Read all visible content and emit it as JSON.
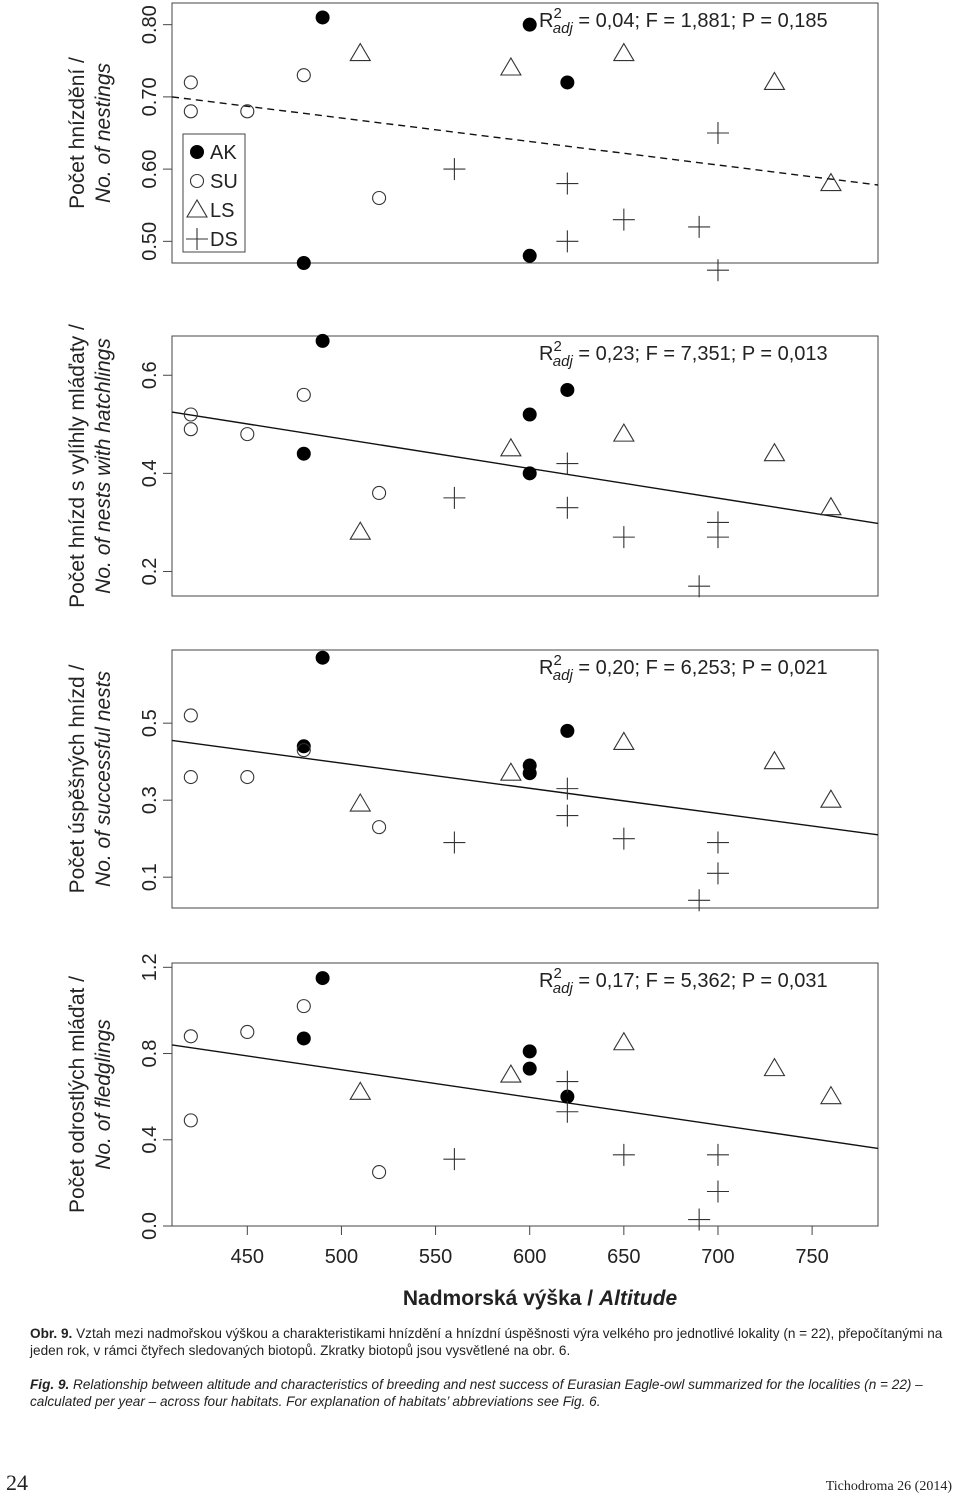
{
  "figure": {
    "x_axis": {
      "title_cz": "Nadmorská výška / ",
      "title_en": "Altitude",
      "ticks": [
        "450",
        "500",
        "550",
        "600",
        "650",
        "700",
        "750"
      ]
    },
    "legend": [
      "AK",
      "SU",
      "LS",
      "DS"
    ]
  },
  "chart_data": [
    {
      "type": "scatter",
      "ylabel_cz": "Počet hnízdění /",
      "ylabel_en": "No. of nestings",
      "xlim": [
        410,
        785
      ],
      "ylim": [
        0.47,
        0.83
      ],
      "yticks": [
        "0.50",
        "0.60",
        "0.70",
        "0.80"
      ],
      "stat_pre": "R",
      "stat_sup": "2",
      "stat_sub": "adj",
      "stat_text": " = 0,04; F = 1,881; P = 0,185",
      "fit_line": {
        "style": "dashed",
        "x": [
          410,
          785
        ],
        "y": [
          0.7,
          0.578
        ]
      },
      "series": [
        {
          "name": "AK",
          "marker": "filled-circle",
          "points": [
            [
              480,
              0.47
            ],
            [
              490,
              0.81
            ],
            [
              600,
              0.8
            ],
            [
              600,
              0.48
            ],
            [
              620,
              0.72
            ]
          ]
        },
        {
          "name": "SU",
          "marker": "open-circle",
          "points": [
            [
              420,
              0.72
            ],
            [
              420,
              0.68
            ],
            [
              450,
              0.68
            ],
            [
              480,
              0.73
            ],
            [
              520,
              0.56
            ]
          ]
        },
        {
          "name": "LS",
          "marker": "open-triangle",
          "points": [
            [
              510,
              0.76
            ],
            [
              590,
              0.74
            ],
            [
              650,
              0.76
            ],
            [
              730,
              0.72
            ],
            [
              760,
              0.58
            ]
          ]
        },
        {
          "name": "DS",
          "marker": "plus",
          "points": [
            [
              560,
              0.6
            ],
            [
              620,
              0.58
            ],
            [
              620,
              0.5
            ],
            [
              650,
              0.53
            ],
            [
              690,
              0.52
            ],
            [
              700,
              0.46
            ],
            [
              700,
              0.65
            ]
          ]
        }
      ]
    },
    {
      "type": "scatter",
      "ylabel_cz": "Počet hnízd s vylíhly mláďaty /",
      "ylabel_en": "No. of nests with hatchlings",
      "xlim": [
        410,
        785
      ],
      "ylim": [
        0.15,
        0.68
      ],
      "yticks": [
        "0.2",
        "0.4",
        "0.6"
      ],
      "stat_pre": "R",
      "stat_sup": "2",
      "stat_sub": "adj",
      "stat_text": " = 0,23; F = 7,351; P = 0,013",
      "fit_line": {
        "style": "solid",
        "x": [
          410,
          785
        ],
        "y": [
          0.525,
          0.298
        ]
      },
      "series": [
        {
          "name": "AK",
          "marker": "filled-circle",
          "points": [
            [
              480,
              0.44
            ],
            [
              490,
              0.67
            ],
            [
              600,
              0.52
            ],
            [
              600,
              0.4
            ],
            [
              620,
              0.57
            ]
          ]
        },
        {
          "name": "SU",
          "marker": "open-circle",
          "points": [
            [
              420,
              0.52
            ],
            [
              420,
              0.49
            ],
            [
              450,
              0.48
            ],
            [
              480,
              0.56
            ],
            [
              520,
              0.36
            ]
          ]
        },
        {
          "name": "LS",
          "marker": "open-triangle",
          "points": [
            [
              510,
              0.28
            ],
            [
              590,
              0.45
            ],
            [
              650,
              0.48
            ],
            [
              730,
              0.44
            ],
            [
              760,
              0.33
            ]
          ]
        },
        {
          "name": "DS",
          "marker": "plus",
          "points": [
            [
              560,
              0.35
            ],
            [
              620,
              0.42
            ],
            [
              620,
              0.33
            ],
            [
              650,
              0.27
            ],
            [
              690,
              0.17
            ],
            [
              700,
              0.3
            ],
            [
              700,
              0.27
            ]
          ]
        }
      ]
    },
    {
      "type": "scatter",
      "ylabel_cz": "Počet úspěšných hnízd /",
      "ylabel_en": "No. of successful nests",
      "xlim": [
        410,
        785
      ],
      "ylim": [
        0.02,
        0.69
      ],
      "yticks": [
        "0.1",
        "0.3",
        "0.5"
      ],
      "stat_pre": "R",
      "stat_sup": "2",
      "stat_sub": "adj",
      "stat_text": " = 0,20; F = 6,253; P = 0,021",
      "fit_line": {
        "style": "solid",
        "x": [
          410,
          785
        ],
        "y": [
          0.455,
          0.21
        ]
      },
      "series": [
        {
          "name": "AK",
          "marker": "filled-circle",
          "points": [
            [
              480,
              0.44
            ],
            [
              490,
              0.67
            ],
            [
              600,
              0.39
            ],
            [
              600,
              0.37
            ],
            [
              620,
              0.48
            ]
          ]
        },
        {
          "name": "SU",
          "marker": "open-circle",
          "points": [
            [
              420,
              0.52
            ],
            [
              420,
              0.36
            ],
            [
              450,
              0.36
            ],
            [
              480,
              0.43
            ],
            [
              520,
              0.23
            ]
          ]
        },
        {
          "name": "LS",
          "marker": "open-triangle",
          "points": [
            [
              510,
              0.29
            ],
            [
              590,
              0.37
            ],
            [
              650,
              0.45
            ],
            [
              730,
              0.4
            ],
            [
              760,
              0.3
            ]
          ]
        },
        {
          "name": "DS",
          "marker": "plus",
          "points": [
            [
              560,
              0.19
            ],
            [
              620,
              0.33
            ],
            [
              620,
              0.26
            ],
            [
              650,
              0.2
            ],
            [
              690,
              0.04
            ],
            [
              700,
              0.19
            ],
            [
              700,
              0.11
            ]
          ]
        }
      ]
    },
    {
      "type": "scatter",
      "ylabel_cz": "Počet odrostlých mláďat /",
      "ylabel_en": "No. of fledglings",
      "xlim": [
        410,
        785
      ],
      "ylim": [
        0.0,
        1.22
      ],
      "yticks": [
        "0.0",
        "0.4",
        "0.8",
        "1.2"
      ],
      "stat_pre": "R",
      "stat_sup": "2",
      "stat_sub": "adj",
      "stat_text": " = 0,17; F = 5,362; P = 0,031",
      "fit_line": {
        "style": "solid",
        "x": [
          410,
          785
        ],
        "y": [
          0.84,
          0.36
        ]
      },
      "series": [
        {
          "name": "AK",
          "marker": "filled-circle",
          "points": [
            [
              480,
              0.87
            ],
            [
              490,
              1.15
            ],
            [
              600,
              0.81
            ],
            [
              600,
              0.73
            ],
            [
              620,
              0.6
            ]
          ]
        },
        {
          "name": "SU",
          "marker": "open-circle",
          "points": [
            [
              420,
              0.88
            ],
            [
              420,
              0.49
            ],
            [
              450,
              0.9
            ],
            [
              480,
              1.02
            ],
            [
              520,
              0.25
            ]
          ]
        },
        {
          "name": "LS",
          "marker": "open-triangle",
          "points": [
            [
              510,
              0.62
            ],
            [
              590,
              0.7
            ],
            [
              650,
              0.85
            ],
            [
              730,
              0.73
            ],
            [
              760,
              0.6
            ]
          ]
        },
        {
          "name": "DS",
          "marker": "plus",
          "points": [
            [
              560,
              0.31
            ],
            [
              620,
              0.67
            ],
            [
              620,
              0.53
            ],
            [
              650,
              0.33
            ],
            [
              690,
              0.03
            ],
            [
              700,
              0.33
            ],
            [
              700,
              0.16
            ]
          ]
        }
      ]
    }
  ],
  "caption": {
    "cz_label": "Obr. 9.",
    "cz_text": " Vztah mezi nadmořskou výškou a charakteristikami hnízdění a hnízdní úspěšnosti výra velkého pro jednotlivé lokality (n = 22), přepočítanými na jeden rok, v rámci čtyřech sledovaných biotopů. Zkratky biotopů jsou vysvětlené na obr. 6.",
    "en_label": "Fig. 9.",
    "en_text": " Relationship between altitude and characteristics of breeding and nest success of Eurasian Eagle-owl summarized for the localities (n = 22) – calculated per year – across four habitats. For explanation of habitats’ abbreviations see Fig. 6."
  },
  "footer": {
    "page_number": "24",
    "journal": "Tichodroma 26 (2014)"
  }
}
